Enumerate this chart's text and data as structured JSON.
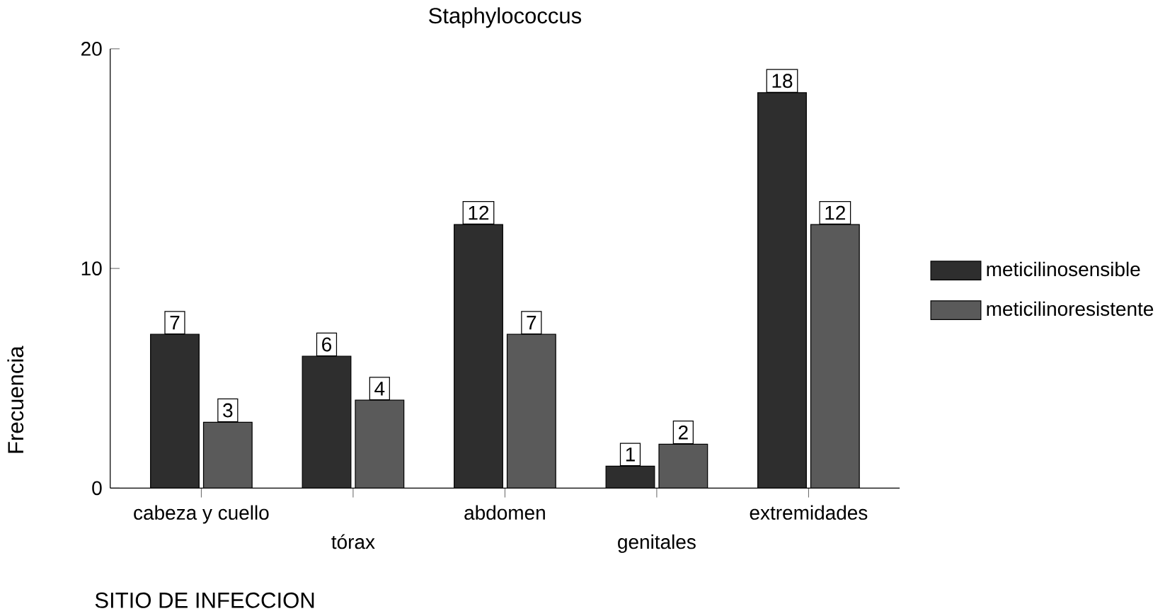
{
  "chart_data": {
    "type": "bar",
    "xlabel": "SITIO DE INFECCION",
    "ylabel": "Frecuencia",
    "legend_title": "Staphylococcus",
    "categories": [
      "cabeza y cuello",
      "tórax",
      "abdomen",
      "genitales",
      "extremidades"
    ],
    "series": [
      {
        "name": "meticilinosensible",
        "color": "#2e2e2e",
        "values": [
          7,
          6,
          12,
          1,
          18
        ]
      },
      {
        "name": "meticilinoresistente",
        "color": "#5a5a5a",
        "values": [
          3,
          4,
          7,
          2,
          12
        ]
      }
    ],
    "ylim": [
      0,
      20
    ],
    "yticks": [
      0,
      10,
      20
    ],
    "data_labels": true,
    "legend": "right"
  }
}
